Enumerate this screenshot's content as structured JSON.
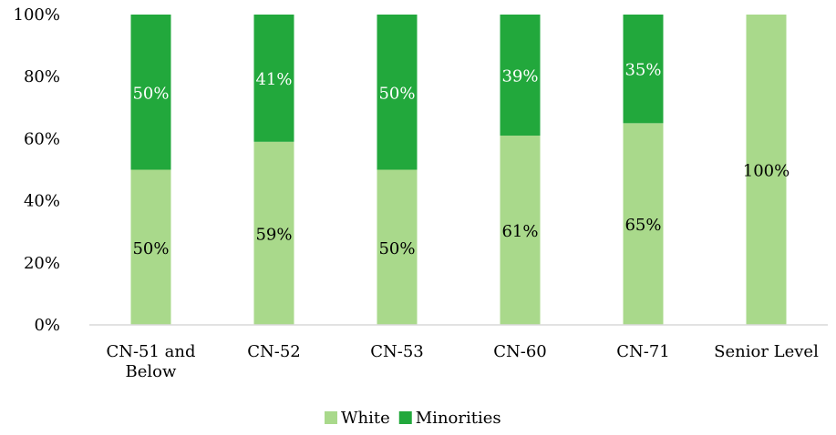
{
  "chart_data": {
    "type": "bar",
    "stacked": true,
    "percent": true,
    "categories": [
      [
        "CN-51 and",
        "Below"
      ],
      [
        "CN-52"
      ],
      [
        "CN-53"
      ],
      [
        "CN-60"
      ],
      [
        "CN-71"
      ],
      [
        "Senior Level"
      ]
    ],
    "series": [
      {
        "name": "White",
        "color": "#a9d98b",
        "values": [
          50,
          59,
          50,
          61,
          65,
          100
        ],
        "labels": [
          "50%",
          "59%",
          "50%",
          "61%",
          "65%",
          "100%"
        ],
        "label_color": "#000000"
      },
      {
        "name": "Minorities",
        "color": "#22a83c",
        "values": [
          50,
          41,
          50,
          39,
          35,
          0
        ],
        "labels": [
          "50%",
          "41%",
          "50%",
          "39%",
          "35%",
          ""
        ],
        "label_color": "#ffffff"
      }
    ],
    "yticks": [
      "0%",
      "20%",
      "40%",
      "60%",
      "80%",
      "100%"
    ],
    "ylim": [
      0,
      100
    ],
    "title": "",
    "xlabel": "",
    "ylabel": "",
    "grid": false,
    "legend": "bottom"
  }
}
